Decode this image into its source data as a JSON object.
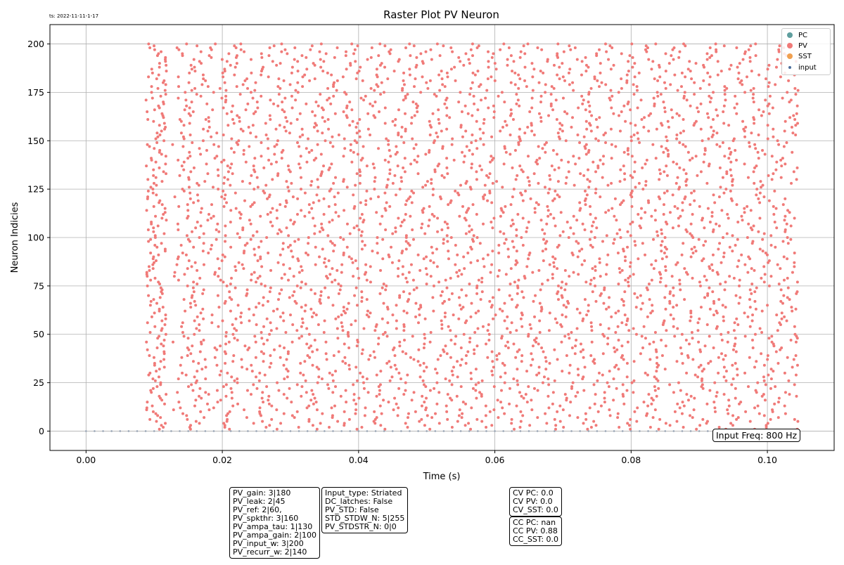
{
  "timestamp": "ts: 2022-11-11-1-17",
  "chart_data": {
    "type": "scatter",
    "title": "Raster Plot PV Neuron",
    "xlabel": "Time (s)",
    "ylabel": "Neuron Indicies",
    "xlim": [
      -0.0053,
      0.1098
    ],
    "ylim": [
      -10,
      210
    ],
    "xticks": [
      0.0,
      0.02,
      0.04,
      0.06,
      0.08,
      0.1
    ],
    "xtick_labels": [
      "0.00",
      "0.02",
      "0.04",
      "0.06",
      "0.08",
      "0.10"
    ],
    "yticks": [
      0,
      25,
      50,
      75,
      100,
      125,
      150,
      175,
      200
    ],
    "yticklabels": [
      "0",
      "25",
      "50",
      "75",
      "100",
      "125",
      "150",
      "175",
      "200"
    ],
    "grid": true,
    "legend_position": "top-right",
    "series": [
      {
        "name": "PC",
        "color": "#5f9e9e",
        "x": [],
        "y": []
      },
      {
        "name": "PV",
        "color": "#f07a78",
        "description": "Dense raster of spikes for neurons 0-200 over time 0.007-0.105 s",
        "x_range": [
          0.007,
          0.1045
        ],
        "neuron_range": [
          0,
          200
        ]
      },
      {
        "name": "SST",
        "color": "#f0a050",
        "x": [],
        "y": []
      },
      {
        "name": "input",
        "color": "#4c6e9c",
        "description": "Regular input spikes along neuron index 0",
        "x_start": 0.0,
        "x_end": 0.104,
        "interval": 0.00125,
        "y": 0
      }
    ]
  },
  "annotations": {
    "input_freq": "Input Freq: 800 Hz",
    "pv_params": "PV_gain: 3|180\nPV_leak: 2|45\nPV_ref: 2|60,\nPV_spkthr: 3|160\nPV_ampa_tau: 1|130\nPV_ampa_gain: 2|100\nPV_input_w: 3|200\nPV_recurr_w: 2|140",
    "input_params": "Input_type: Striated\nDC_latches: False\nPV_STD: False\nSTD_STDW_N: 5|255\nPV_STDSTR_N: 0|0",
    "cv_params": "CV PC: 0.0\nCV PV: 0.0\nCV_SST: 0.0",
    "cc_params": "CC PC: nan\nCC PV: 0.88\nCC_SST: 0.0"
  }
}
